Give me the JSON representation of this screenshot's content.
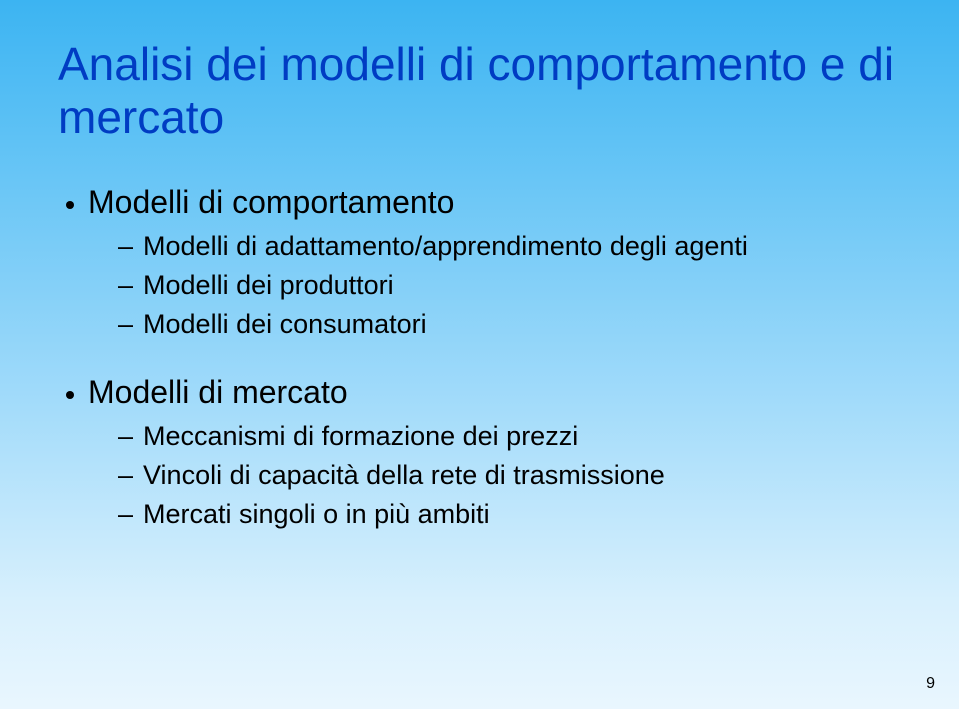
{
  "colors": {
    "title": "#003cc3",
    "text": "#000000",
    "bg_top": "#3cb4f2",
    "bg_bottom": "#e9f6fe"
  },
  "typography": {
    "title_fontsize": 46,
    "level1_fontsize": 32,
    "level2_fontsize": 27,
    "font_family": "Arial"
  },
  "title": "Analisi dei modelli di comportamento e di mercato",
  "sections": [
    {
      "heading": "Modelli di comportamento",
      "items": [
        "Modelli di adattamento/apprendimento degli agenti",
        "Modelli dei produttori",
        "Modelli dei consumatori"
      ]
    },
    {
      "heading": "Modelli di mercato",
      "items": [
        "Meccanismi di formazione dei prezzi",
        "Vincoli di capacità della rete di trasmissione",
        "Mercati singoli o in più ambiti"
      ]
    }
  ],
  "page_number": "9"
}
